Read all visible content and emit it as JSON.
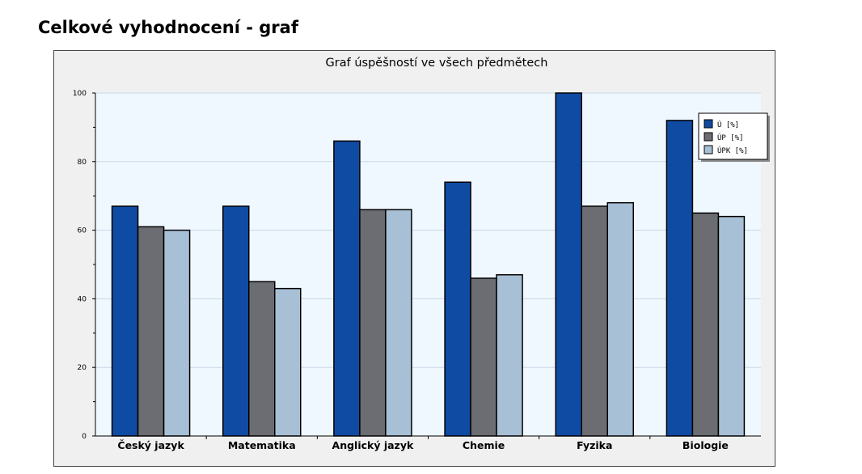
{
  "page": {
    "heading": "Celkové vyhodnocení - graf"
  },
  "colors": {
    "frame_bg": "#f0f0f0",
    "plot_bg": "#f0f8ff",
    "gridline": "#c8d8e8"
  },
  "chart_data": {
    "type": "bar",
    "title": "Graf úspěšností ve všech předmětech",
    "xlabel": "",
    "ylabel": "",
    "ylim": [
      0,
      100
    ],
    "yticks": [
      0,
      20,
      40,
      60,
      80,
      100
    ],
    "grid": true,
    "legend_position": "top-right",
    "categories": [
      "Český jazyk",
      "Matematika",
      "Anglický jazyk",
      "Chemie",
      "Fyzika",
      "Biologie"
    ],
    "series": [
      {
        "name": "Ú [%]",
        "color": "#0f4ba3",
        "values": [
          67,
          67,
          86,
          74,
          100,
          92
        ]
      },
      {
        "name": "ÚP [%]",
        "color": "#6c6d72",
        "values": [
          61,
          45,
          66,
          46,
          67,
          65
        ]
      },
      {
        "name": "ÚPK [%]",
        "color": "#a8c0d6",
        "values": [
          60,
          43,
          66,
          47,
          68,
          64
        ]
      }
    ]
  }
}
